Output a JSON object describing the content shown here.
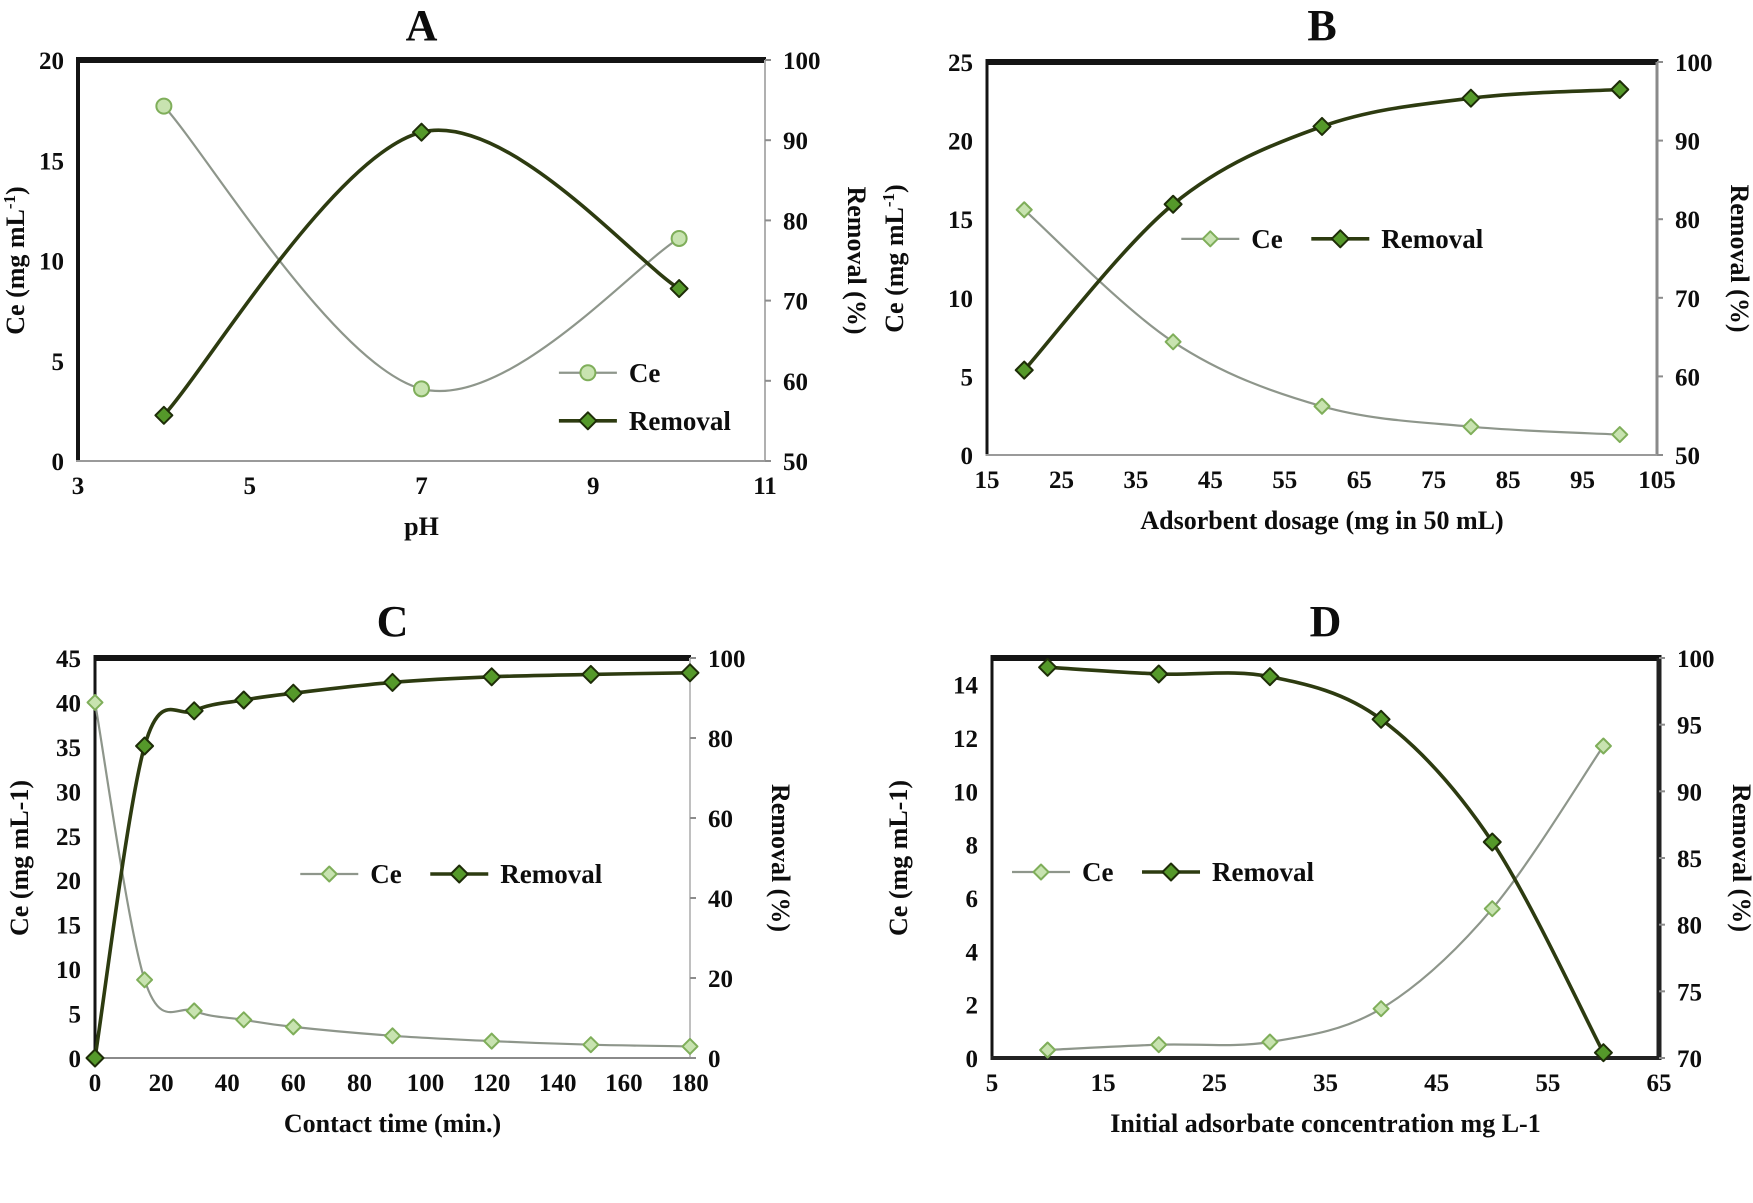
{
  "figure": {
    "background": "#ffffff",
    "colors": {
      "ce_line": "#8e968b",
      "ce_marker_fill": "#c8e3b0",
      "ce_marker_stroke": "#7fae5a",
      "removal_line": "#2d3b10",
      "removal_marker_fill": "#55992a",
      "removal_marker_stroke": "#1e2d08",
      "frame_dark": "#141414",
      "frame_gray": "#9a9a9a",
      "text": "#0d0d0d"
    }
  },
  "chart_data": [
    {
      "id": "A",
      "type": "line",
      "title": "A",
      "xlabel": "pH",
      "ylabel_left": {
        "text": "Ce (mg mL",
        "sup": "-1",
        "tail": ")"
      },
      "ylabel_right": "Removal (%)",
      "xlim": [
        3,
        11
      ],
      "xticks": [
        3,
        5,
        7,
        9,
        11
      ],
      "ylim_left": [
        0,
        20
      ],
      "yticks_left": [
        0,
        5,
        10,
        15,
        20
      ],
      "ylim_right": [
        50,
        100
      ],
      "yticks_right": [
        50,
        60,
        70,
        80,
        90,
        100
      ],
      "grid": false,
      "legend": {
        "layout": "vertical",
        "fx": 0.7,
        "fy": 0.78,
        "row_gap": 48
      },
      "series": [
        {
          "name": "Ce",
          "axis": "left",
          "marker": "circle",
          "x": [
            4,
            7,
            10
          ],
          "values": [
            17.7,
            3.6,
            11.1
          ]
        },
        {
          "name": "Removal",
          "axis": "right",
          "marker": "diamond",
          "x": [
            4,
            7,
            10
          ],
          "values": [
            55.7,
            91.0,
            71.5
          ]
        }
      ]
    },
    {
      "id": "B",
      "type": "line",
      "title": "B",
      "xlabel": "Adsorbent dosage (mg in 50 mL)",
      "ylabel_left": {
        "text": "Ce (mg mL",
        "sup": "-1",
        "tail": ")"
      },
      "ylabel_right": "Removal (%)",
      "xlim": [
        15,
        105
      ],
      "xticks": [
        15,
        25,
        35,
        45,
        55,
        65,
        75,
        85,
        95,
        105
      ],
      "ylim_left": [
        0,
        25
      ],
      "yticks_left": [
        0,
        5,
        10,
        15,
        20,
        25
      ],
      "ylim_right": [
        50,
        100
      ],
      "yticks_right": [
        50,
        60,
        70,
        80,
        90,
        100
      ],
      "grid": false,
      "legend": {
        "layout": "horizontal",
        "fx": 0.29,
        "fy": 0.45
      },
      "series": [
        {
          "name": "Ce",
          "axis": "left",
          "marker": "diamond",
          "x": [
            20,
            40,
            60,
            80,
            100
          ],
          "values": [
            15.6,
            7.2,
            3.1,
            1.8,
            1.3
          ]
        },
        {
          "name": "Removal",
          "axis": "right",
          "marker": "diamond",
          "x": [
            20,
            40,
            60,
            80,
            100
          ],
          "values": [
            60.8,
            81.9,
            91.8,
            95.4,
            96.5
          ]
        }
      ]
    },
    {
      "id": "C",
      "type": "line",
      "title": "C",
      "xlabel": "Contact time (min.)",
      "ylabel_left": "Ce (mg mL-1)",
      "ylabel_right": "Removal (%)",
      "xlim": [
        0,
        180
      ],
      "xticks": [
        0,
        20,
        40,
        60,
        80,
        100,
        120,
        140,
        160,
        180
      ],
      "ylim_left": [
        0,
        45
      ],
      "yticks_left": [
        0,
        5,
        10,
        15,
        20,
        25,
        30,
        35,
        40,
        45
      ],
      "ylim_right": [
        0,
        100
      ],
      "yticks_right": [
        0,
        20,
        40,
        60,
        80,
        100
      ],
      "grid": false,
      "legend": {
        "layout": "horizontal",
        "fx": 0.345,
        "fy": 0.54
      },
      "series": [
        {
          "name": "Ce",
          "axis": "left",
          "marker": "diamond",
          "x": [
            0,
            15,
            30,
            45,
            60,
            90,
            120,
            150,
            180
          ],
          "values": [
            40.0,
            8.8,
            5.3,
            4.3,
            3.5,
            2.5,
            1.9,
            1.5,
            1.3
          ]
        },
        {
          "name": "Removal",
          "axis": "right",
          "marker": "diamond",
          "x": [
            0,
            15,
            30,
            45,
            60,
            90,
            120,
            150,
            180
          ],
          "values": [
            0,
            78.0,
            86.8,
            89.5,
            91.2,
            93.9,
            95.3,
            95.9,
            96.3
          ]
        }
      ]
    },
    {
      "id": "D",
      "type": "line",
      "title": "D",
      "xlabel": "Initial adsorbate concentration mg L-1",
      "ylabel_left": "Ce (mg mL-1)",
      "ylabel_right": "Removal (%)",
      "xlim": [
        5,
        65
      ],
      "xticks": [
        5,
        15,
        25,
        35,
        45,
        55,
        65
      ],
      "ylim_left": [
        0,
        15
      ],
      "yticks_left": [
        0,
        2,
        4,
        6,
        8,
        10,
        12,
        14
      ],
      "ylim_right": [
        70,
        100
      ],
      "yticks_right": [
        70,
        75,
        80,
        85,
        90,
        95,
        100
      ],
      "grid": false,
      "legend": {
        "layout": "horizontal",
        "fx": 0.03,
        "fy": 0.535
      },
      "series": [
        {
          "name": "Ce",
          "axis": "left",
          "marker": "diamond",
          "x": [
            10,
            20,
            30,
            40,
            50,
            60
          ],
          "values": [
            0.3,
            0.5,
            0.6,
            1.85,
            5.6,
            11.7
          ]
        },
        {
          "name": "Removal",
          "axis": "right",
          "marker": "diamond",
          "x": [
            10,
            20,
            30,
            40,
            50,
            60
          ],
          "values": [
            99.3,
            98.8,
            98.6,
            95.4,
            86.2,
            70.4
          ]
        }
      ]
    }
  ]
}
